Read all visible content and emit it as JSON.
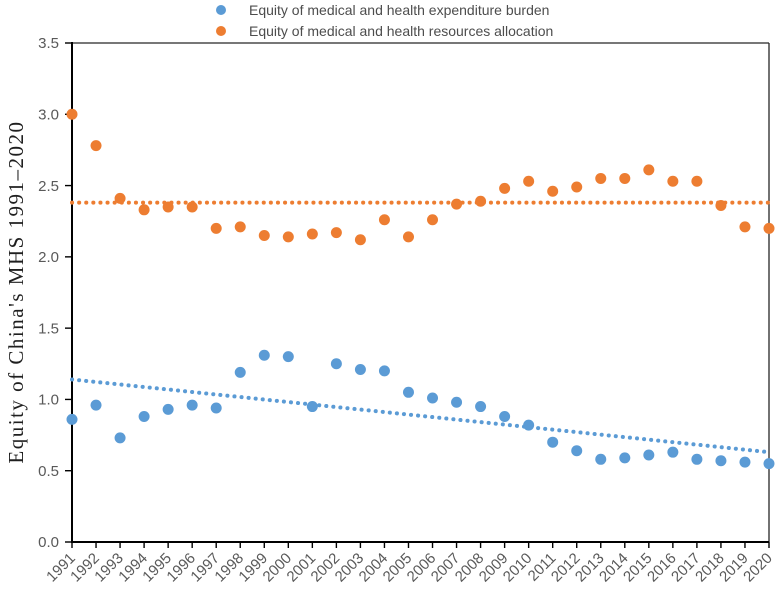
{
  "chart_data": {
    "type": "scatter",
    "title": "",
    "xlabel": "",
    "ylabel": "Equity of China's MHS 1991–2020",
    "ylim": [
      0.0,
      3.5
    ],
    "ytick_step": 0.5,
    "ytick_labels": [
      "0.0",
      "0.5",
      "1.0",
      "1.5",
      "2.0",
      "2.5",
      "3.0",
      "3.5"
    ],
    "grid": false,
    "legend_position": "top",
    "axis_color": "#000000",
    "tick_label_color": "#595959",
    "x": [
      1991,
      1992,
      1993,
      1994,
      1995,
      1996,
      1997,
      1998,
      1999,
      2000,
      2001,
      2002,
      2003,
      2004,
      2005,
      2006,
      2007,
      2008,
      2009,
      2010,
      2011,
      2012,
      2013,
      2014,
      2015,
      2016,
      2017,
      2018,
      2019,
      2020
    ],
    "series": [
      {
        "name": "Equity of medical and health expenditure burden",
        "color": "#5B9BD5",
        "marker": "circle",
        "values": [
          0.86,
          0.96,
          0.73,
          0.88,
          0.93,
          0.96,
          0.94,
          1.19,
          1.31,
          1.3,
          0.95,
          1.25,
          1.21,
          1.2,
          1.05,
          1.01,
          0.98,
          0.95,
          0.88,
          0.82,
          0.7,
          0.64,
          0.58,
          0.59,
          0.61,
          0.63,
          0.58,
          0.57,
          0.56,
          0.55
        ],
        "trendline": {
          "style": "dotted",
          "x1": 1991,
          "v1": 1.14,
          "x2": 2020,
          "v2": 0.63
        }
      },
      {
        "name": "Equity of medical and health resources allocation",
        "color": "#ED7D31",
        "marker": "circle",
        "values": [
          3.0,
          2.78,
          2.41,
          2.33,
          2.35,
          2.35,
          2.2,
          2.21,
          2.15,
          2.14,
          2.16,
          2.17,
          2.12,
          2.26,
          2.14,
          2.26,
          2.37,
          2.39,
          2.48,
          2.53,
          2.46,
          2.49,
          2.55,
          2.55,
          2.61,
          2.53,
          2.53,
          2.36,
          2.21,
          2.2
        ],
        "trendline": {
          "style": "dotted",
          "x1": 1991,
          "v1": 2.38,
          "x2": 2020,
          "v2": 2.38
        }
      }
    ]
  }
}
